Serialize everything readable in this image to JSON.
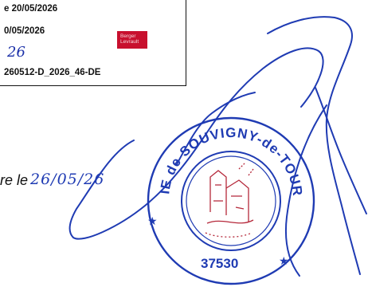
{
  "stamp_box": {
    "line1": "e 20/05/2026",
    "line2": "0/05/2026",
    "handwritten_year": "26",
    "line4": "260512-D_2026_46-DE"
  },
  "berger_label": {
    "line1": "Berger",
    "line2": "Levrault"
  },
  "affichage": {
    "text": "re le",
    "handwritten_date": "26/05/26"
  },
  "seal": {
    "ring_text": "MAIRIE de SOUVIGNY-de-TOURAINE",
    "postcode": "37530",
    "ink_color": "#1f3bb3",
    "emblem_color": "#b5283a"
  }
}
